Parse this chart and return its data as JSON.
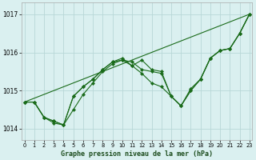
{
  "title": "Graphe pression niveau de la mer (hPa)",
  "bg_color": "#daf0f0",
  "grid_color": "#b8d8d8",
  "line_color": "#1a6b1a",
  "marker_color": "#1a6b1a",
  "xlim": [
    0,
    23
  ],
  "ylim": [
    1013.7,
    1017.3
  ],
  "yticks": [
    1014,
    1015,
    1016,
    1017
  ],
  "xticks": [
    0,
    1,
    2,
    3,
    4,
    5,
    6,
    7,
    8,
    9,
    10,
    11,
    12,
    13,
    14,
    15,
    16,
    17,
    18,
    19,
    20,
    21,
    22,
    23
  ],
  "series": [
    [
      1014.7,
      1014.7,
      1014.3,
      1014.2,
      1014.1,
      1014.85,
      1015.1,
      1015.3,
      1015.55,
      1015.75,
      1015.8,
      1015.75,
      1015.55,
      1015.5,
      1015.45,
      1014.85,
      1014.6,
      1015.05,
      1015.3,
      1015.85,
      1016.05,
      1016.1,
      1016.5,
      1017.0
    ],
    [
      1014.7,
      1014.7,
      1014.3,
      1014.2,
      1014.1,
      1014.5,
      1014.9,
      1015.2,
      1015.5,
      1015.7,
      1015.8,
      1015.65,
      1015.8,
      1015.55,
      1015.5,
      1014.85,
      1014.6,
      1015.0,
      1015.3,
      1015.85,
      1016.05,
      1016.1,
      1016.5,
      1017.0
    ],
    [
      1014.7,
      1014.7,
      1014.3,
      1014.15,
      1014.1,
      1014.85,
      1015.1,
      1015.3,
      1015.55,
      1015.75,
      1015.85,
      1015.65,
      1015.45,
      1015.2,
      1015.1,
      1014.85,
      1014.6,
      1015.0,
      1015.3,
      1015.85,
      1016.05,
      1016.1,
      1016.5,
      1017.0
    ]
  ],
  "trend_line": [
    1014.7,
    1017.0
  ],
  "trend_x": [
    0,
    23
  ]
}
